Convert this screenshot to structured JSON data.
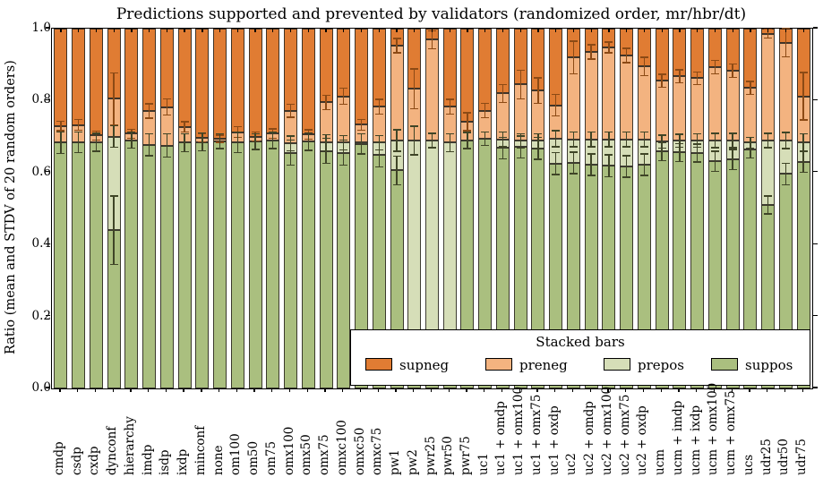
{
  "chart_data": {
    "type": "bar",
    "stacked": true,
    "title": "Predictions supported and prevented by validators (randomized order, mr/hbr/dt)",
    "ylabel": "Ratio (mean and STDV of 20 random orders)",
    "ylim": [
      0.0,
      1.0
    ],
    "yticks": [
      "0.0",
      "0.2",
      "0.4",
      "0.6",
      "0.8",
      "1.0"
    ],
    "grid": false,
    "legend_title": "Stacked bars",
    "legend_position": "lower right, inside axes, overlapping bars",
    "series_order_bottom_to_top": [
      "suppos",
      "prepos",
      "preneg",
      "supneg"
    ],
    "legend_entries": [
      {
        "name": "supneg",
        "color": "#e07c33"
      },
      {
        "name": "preneg",
        "color": "#f3b380"
      },
      {
        "name": "prepos",
        "color": "#d6deb8"
      },
      {
        "name": "suppos",
        "color": "#aabf7f"
      }
    ],
    "colors": {
      "supneg": "#e07c33",
      "preneg": "#f3b380",
      "prepos": "#d6deb8",
      "suppos": "#aabf7f",
      "edge": "#2d2a23",
      "whisker_orange": "#8c4a15",
      "whisker_green": "#3f4527"
    },
    "note": "Each bar stacks to 1.0. Values below give top of suppos (s), top of prepos (p), top of preneg (q); supneg fills q to 1.0. e-values are STDV whisker half-lengths at each boundary.",
    "bars": [
      {
        "label": "cmdp",
        "s": 0.683,
        "p": 0.683,
        "q": 0.729,
        "es": 0.03,
        "ep": 0,
        "eq": 0.013
      },
      {
        "label": "csdp",
        "s": 0.684,
        "p": 0.684,
        "q": 0.732,
        "es": 0.028,
        "ep": 0,
        "eq": 0.015
      },
      {
        "label": "cxdp",
        "s": 0.684,
        "p": 0.684,
        "q": 0.703,
        "es": 0.025,
        "ep": 0,
        "eq": 0.012
      },
      {
        "label": "dynconf",
        "s": 0.44,
        "p": 0.7,
        "q": 0.805,
        "es": 0.095,
        "ep": 0.03,
        "eq": 0.072
      },
      {
        "label": "hierarchy",
        "s": 0.69,
        "p": 0.69,
        "q": 0.708,
        "es": 0.022,
        "ep": 0,
        "eq": 0.012
      },
      {
        "label": "imdp",
        "s": 0.677,
        "p": 0.677,
        "q": 0.771,
        "es": 0.03,
        "ep": 0,
        "eq": 0.02
      },
      {
        "label": "isdp",
        "s": 0.675,
        "p": 0.675,
        "q": 0.782,
        "es": 0.032,
        "ep": 0,
        "eq": 0.022
      },
      {
        "label": "ixdp",
        "s": 0.683,
        "p": 0.683,
        "q": 0.727,
        "es": 0.025,
        "ep": 0,
        "eq": 0.014
      },
      {
        "label": "minconf",
        "s": 0.685,
        "p": 0.685,
        "q": 0.697,
        "es": 0.025,
        "ep": 0,
        "eq": 0.012
      },
      {
        "label": "none",
        "s": 0.687,
        "p": 0.687,
        "q": 0.694,
        "es": 0.02,
        "ep": 0,
        "eq": 0.01
      },
      {
        "label": "om100",
        "s": 0.684,
        "p": 0.684,
        "q": 0.712,
        "es": 0.028,
        "ep": 0,
        "eq": 0.015
      },
      {
        "label": "om50",
        "s": 0.686,
        "p": 0.686,
        "q": 0.7,
        "es": 0.022,
        "ep": 0,
        "eq": 0.012
      },
      {
        "label": "om75",
        "s": 0.689,
        "p": 0.689,
        "q": 0.708,
        "es": 0.022,
        "ep": 0,
        "eq": 0.013
      },
      {
        "label": "omx100",
        "s": 0.655,
        "p": 0.681,
        "q": 0.772,
        "es": 0.035,
        "ep": 0.02,
        "eq": 0.018
      },
      {
        "label": "omx50",
        "s": 0.686,
        "p": 0.686,
        "q": 0.706,
        "es": 0.024,
        "ep": 0,
        "eq": 0.013
      },
      {
        "label": "omx75",
        "s": 0.66,
        "p": 0.683,
        "q": 0.795,
        "es": 0.035,
        "ep": 0.022,
        "eq": 0.02
      },
      {
        "label": "omxc100",
        "s": 0.655,
        "p": 0.683,
        "q": 0.812,
        "es": 0.035,
        "ep": 0.02,
        "eq": 0.022
      },
      {
        "label": "omxc50",
        "s": 0.68,
        "p": 0.684,
        "q": 0.733,
        "es": 0.028,
        "ep": 0,
        "eq": 0.015
      },
      {
        "label": "omxc75",
        "s": 0.65,
        "p": 0.683,
        "q": 0.783,
        "es": 0.035,
        "ep": 0.02,
        "eq": 0.02
      },
      {
        "label": "pw1",
        "s": 0.606,
        "p": 0.689,
        "q": 0.953,
        "es": 0.04,
        "ep": 0.03,
        "eq": 0.02
      },
      {
        "label": "pw2",
        "s": 0.12,
        "p": 0.689,
        "q": 0.833,
        "es": 0,
        "ep": 0.04,
        "eq": 0.055
      },
      {
        "label": "pwr25",
        "s": 0.1,
        "p": 0.689,
        "q": 0.969,
        "es": 0,
        "ep": 0.02,
        "eq": 0.025
      },
      {
        "label": "pwr50",
        "s": 0.1,
        "p": 0.683,
        "q": 0.783,
        "es": 0,
        "ep": 0.025,
        "eq": 0.02
      },
      {
        "label": "pwr75",
        "s": 0.689,
        "p": 0.689,
        "q": 0.741,
        "es": 0.022,
        "ep": 0,
        "eq": 0.025
      },
      {
        "label": "uc1",
        "s": 0.694,
        "p": 0.694,
        "q": 0.772,
        "es": 0.018,
        "ep": 0,
        "eq": 0.02
      },
      {
        "label": "uc1 + omdp",
        "s": 0.668,
        "p": 0.692,
        "q": 0.82,
        "es": 0.03,
        "ep": 0.02,
        "eq": 0.025
      },
      {
        "label": "uc1 + omx100",
        "s": 0.671,
        "p": 0.688,
        "q": 0.845,
        "es": 0.03,
        "ep": 0.02,
        "eq": 0.04
      },
      {
        "label": "uc1 + omx75",
        "s": 0.667,
        "p": 0.688,
        "q": 0.828,
        "es": 0.03,
        "ep": 0.02,
        "eq": 0.035
      },
      {
        "label": "uc1 + oxdp",
        "s": 0.625,
        "p": 0.694,
        "q": 0.787,
        "es": 0.03,
        "ep": 0.022,
        "eq": 0.03
      },
      {
        "label": "uc2",
        "s": 0.627,
        "p": 0.692,
        "q": 0.92,
        "es": 0.03,
        "ep": 0.02,
        "eq": 0.045
      },
      {
        "label": "uc2 + omdp",
        "s": 0.622,
        "p": 0.692,
        "q": 0.935,
        "es": 0.03,
        "ep": 0.02,
        "eq": 0.02
      },
      {
        "label": "uc2 + omx100",
        "s": 0.619,
        "p": 0.692,
        "q": 0.948,
        "es": 0.03,
        "ep": 0.02,
        "eq": 0.015
      },
      {
        "label": "uc2 + omx75",
        "s": 0.617,
        "p": 0.692,
        "q": 0.925,
        "es": 0.03,
        "ep": 0.02,
        "eq": 0.02
      },
      {
        "label": "uc2 + oxdp",
        "s": 0.622,
        "p": 0.692,
        "q": 0.895,
        "es": 0.03,
        "ep": 0.02,
        "eq": 0.025
      },
      {
        "label": "ucm",
        "s": 0.658,
        "p": 0.686,
        "q": 0.855,
        "es": 0.025,
        "ep": 0.018,
        "eq": 0.018
      },
      {
        "label": "ucm + imdp",
        "s": 0.656,
        "p": 0.688,
        "q": 0.868,
        "es": 0.025,
        "ep": 0.018,
        "eq": 0.018
      },
      {
        "label": "ucm + ixdp",
        "s": 0.654,
        "p": 0.689,
        "q": 0.862,
        "es": 0.025,
        "ep": 0.018,
        "eq": 0.018
      },
      {
        "label": "ucm + omx100",
        "s": 0.631,
        "p": 0.689,
        "q": 0.893,
        "es": 0.028,
        "ep": 0.02,
        "eq": 0.018
      },
      {
        "label": "ucm + omx75",
        "s": 0.636,
        "p": 0.689,
        "q": 0.883,
        "es": 0.028,
        "ep": 0.02,
        "eq": 0.018
      },
      {
        "label": "ucs",
        "s": 0.663,
        "p": 0.683,
        "q": 0.835,
        "es": 0.022,
        "ep": 0.015,
        "eq": 0.018
      },
      {
        "label": "udr25",
        "s": 0.51,
        "p": 0.689,
        "q": 0.986,
        "es": 0.025,
        "ep": 0.02,
        "eq": 0.012
      },
      {
        "label": "udr50",
        "s": 0.596,
        "p": 0.689,
        "q": 0.961,
        "es": 0.03,
        "ep": 0.022,
        "eq": 0.04
      },
      {
        "label": "udr75",
        "s": 0.63,
        "p": 0.683,
        "q": 0.812,
        "es": 0.03,
        "ep": 0.025,
        "eq": 0.066
      }
    ]
  }
}
